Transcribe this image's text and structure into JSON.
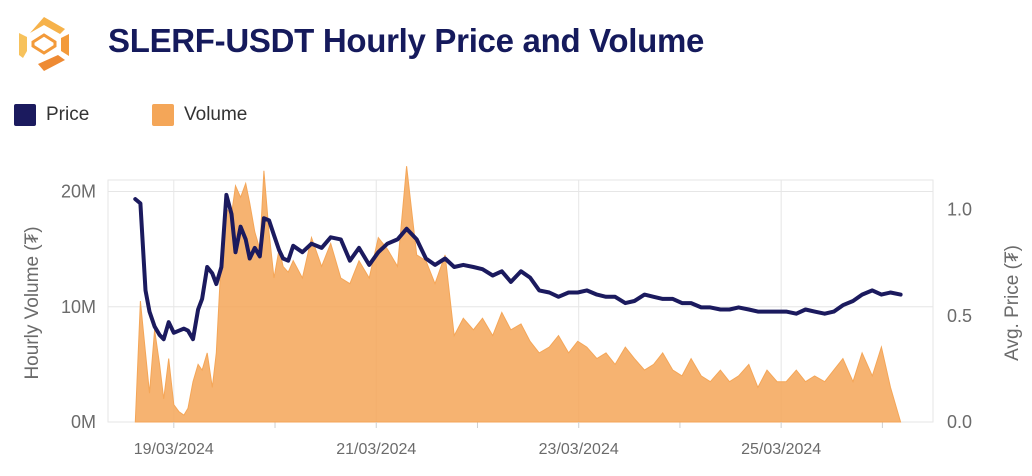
{
  "header": {
    "title": "SLERF-USDT Hourly Price and Volume"
  },
  "legend": [
    {
      "label": "Price",
      "color": "#1b1a5e"
    },
    {
      "label": "Volume",
      "color": "#f4a658"
    }
  ],
  "chart_data": {
    "type": "line",
    "title": "SLERF-USDT Hourly Price and Volume",
    "colors": {
      "price": "#1b1a5e",
      "volume": "#f4a658",
      "grid": "#e6e6e6"
    },
    "x_ticks": [
      "19/03/2024",
      "21/03/2024",
      "23/03/2024",
      "25/03/2024"
    ],
    "x_range_days": [
      -0.65,
      7.5
    ],
    "y_left": {
      "label": "Hourly Volume (₮)",
      "range": [
        0,
        21000000
      ],
      "ticks": [
        0,
        10000000,
        20000000
      ],
      "tick_labels": [
        "0M",
        "10M",
        "20M"
      ]
    },
    "y_right": {
      "label": "Avg. Price (₮)",
      "range": [
        0,
        1.14
      ],
      "ticks": [
        0,
        0.5,
        1.0
      ],
      "tick_labels": [
        "0.0",
        "0.5",
        "1.0"
      ]
    },
    "series": [
      {
        "name": "Price",
        "kind": "line",
        "axis": "right",
        "x_days": [
          -0.38,
          -0.33,
          -0.28,
          -0.24,
          -0.19,
          -0.14,
          -0.1,
          -0.05,
          0.0,
          0.05,
          0.1,
          0.14,
          0.19,
          0.24,
          0.28,
          0.33,
          0.38,
          0.42,
          0.47,
          0.52,
          0.57,
          0.61,
          0.66,
          0.71,
          0.75,
          0.8,
          0.85,
          0.89,
          0.94,
          0.99,
          1.04,
          1.08,
          1.13,
          1.18,
          1.27,
          1.36,
          1.46,
          1.55,
          1.65,
          1.74,
          1.83,
          1.93,
          2.02,
          2.11,
          2.21,
          2.3,
          2.4,
          2.49,
          2.58,
          2.68,
          2.77,
          2.86,
          2.96,
          3.05,
          3.15,
          3.24,
          3.33,
          3.43,
          3.52,
          3.61,
          3.71,
          3.8,
          3.9,
          3.99,
          4.08,
          4.18,
          4.27,
          4.36,
          4.46,
          4.55,
          4.65,
          4.74,
          4.83,
          4.93,
          5.02,
          5.11,
          5.21,
          5.3,
          5.4,
          5.49,
          5.58,
          5.68,
          5.77,
          5.86,
          5.96,
          6.05,
          6.15,
          6.24,
          6.33,
          6.43,
          6.52,
          6.61,
          6.71,
          6.8,
          6.9,
          6.99,
          7.08,
          7.18
        ],
        "values": [
          1.05,
          1.03,
          0.62,
          0.52,
          0.45,
          0.41,
          0.39,
          0.47,
          0.42,
          0.43,
          0.44,
          0.43,
          0.39,
          0.53,
          0.58,
          0.73,
          0.7,
          0.65,
          0.73,
          1.07,
          0.98,
          0.8,
          0.92,
          0.86,
          0.77,
          0.82,
          0.78,
          0.96,
          0.95,
          0.88,
          0.81,
          0.77,
          0.76,
          0.83,
          0.8,
          0.84,
          0.82,
          0.87,
          0.86,
          0.76,
          0.82,
          0.74,
          0.8,
          0.84,
          0.86,
          0.91,
          0.86,
          0.77,
          0.74,
          0.77,
          0.73,
          0.74,
          0.73,
          0.72,
          0.69,
          0.71,
          0.66,
          0.71,
          0.68,
          0.62,
          0.61,
          0.59,
          0.61,
          0.61,
          0.62,
          0.6,
          0.59,
          0.59,
          0.56,
          0.57,
          0.6,
          0.59,
          0.58,
          0.58,
          0.56,
          0.56,
          0.54,
          0.54,
          0.53,
          0.53,
          0.54,
          0.53,
          0.52,
          0.52,
          0.52,
          0.52,
          0.51,
          0.53,
          0.52,
          0.51,
          0.52,
          0.55,
          0.57,
          0.6,
          0.62,
          0.6,
          0.61,
          0.6
        ]
      },
      {
        "name": "Volume",
        "kind": "area",
        "axis": "left",
        "x_days": [
          -0.38,
          -0.33,
          -0.28,
          -0.24,
          -0.19,
          -0.14,
          -0.1,
          -0.05,
          0.0,
          0.05,
          0.1,
          0.14,
          0.19,
          0.24,
          0.28,
          0.33,
          0.38,
          0.42,
          0.47,
          0.52,
          0.57,
          0.61,
          0.66,
          0.71,
          0.75,
          0.8,
          0.85,
          0.89,
          0.94,
          0.99,
          1.04,
          1.08,
          1.13,
          1.18,
          1.27,
          1.36,
          1.46,
          1.55,
          1.65,
          1.74,
          1.83,
          1.93,
          2.02,
          2.11,
          2.21,
          2.3,
          2.4,
          2.49,
          2.58,
          2.68,
          2.77,
          2.86,
          2.96,
          3.05,
          3.15,
          3.24,
          3.33,
          3.43,
          3.52,
          3.61,
          3.71,
          3.8,
          3.9,
          3.99,
          4.08,
          4.18,
          4.27,
          4.36,
          4.46,
          4.55,
          4.65,
          4.74,
          4.83,
          4.93,
          5.02,
          5.11,
          5.21,
          5.3,
          5.4,
          5.49,
          5.58,
          5.68,
          5.77,
          5.86,
          5.96,
          6.05,
          6.15,
          6.24,
          6.33,
          6.43,
          6.52,
          6.61,
          6.71,
          6.8,
          6.9,
          6.99,
          7.08,
          7.18
        ],
        "values": [
          0,
          10500000,
          6000000,
          2500000,
          8000000,
          5000000,
          2000000,
          5500000,
          1500000,
          900000,
          600000,
          1200000,
          3500000,
          5000000,
          4500000,
          6000000,
          3000000,
          6000000,
          14500000,
          18500000,
          18000000,
          20500000,
          19500000,
          20700000,
          19000000,
          16500000,
          15000000,
          21800000,
          16500000,
          12500000,
          15000000,
          13500000,
          13000000,
          14000000,
          12500000,
          16000000,
          13500000,
          15500000,
          12500000,
          12000000,
          14000000,
          12500000,
          16000000,
          15000000,
          13500000,
          22200000,
          14500000,
          14000000,
          12000000,
          14500000,
          7500000,
          9000000,
          8000000,
          9000000,
          7500000,
          9500000,
          8000000,
          8500000,
          7000000,
          6000000,
          6500000,
          7500000,
          6000000,
          7000000,
          6500000,
          5500000,
          6000000,
          5000000,
          6500000,
          5500000,
          4500000,
          5000000,
          6000000,
          4500000,
          4000000,
          5500000,
          4000000,
          3500000,
          4500000,
          3500000,
          4000000,
          5000000,
          3000000,
          4500000,
          3500000,
          3500000,
          4500000,
          3500000,
          4000000,
          3500000,
          4500000,
          5500000,
          3500000,
          6000000,
          4000000,
          6500000,
          3000000,
          0
        ]
      }
    ]
  }
}
